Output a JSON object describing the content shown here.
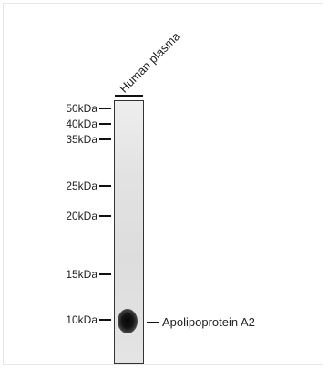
{
  "lane": {
    "label": "Human plasma"
  },
  "markers": [
    {
      "label": "50kDa"
    },
    {
      "label": "40kDa"
    },
    {
      "label": "35kDa"
    },
    {
      "label": "25kDa"
    },
    {
      "label": "20kDa"
    },
    {
      "label": "15kDa"
    },
    {
      "label": "10kDa"
    }
  ],
  "band": {
    "label": "Apolipoprotein A2"
  }
}
